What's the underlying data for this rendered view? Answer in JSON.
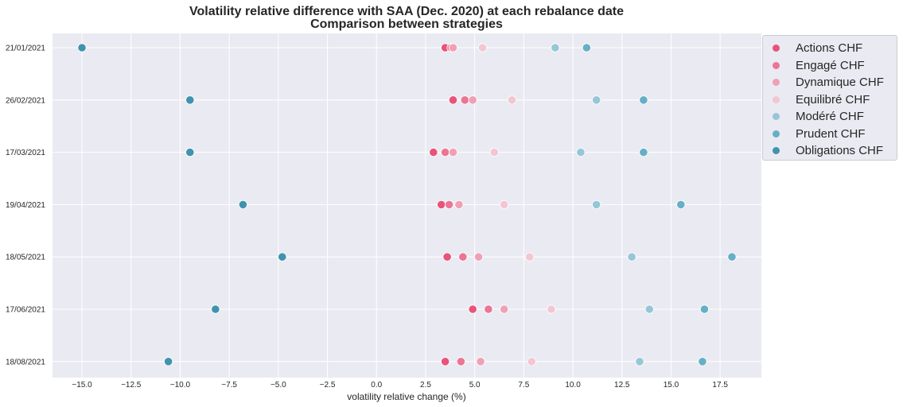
{
  "chart_data": {
    "type": "scatter",
    "title": "Volatility relative difference with SAA (Dec. 2020) at each rebalance date",
    "subtitle": "Comparison between strategies",
    "xlabel": "volatility relative change (%)",
    "ylabel": "",
    "xlim": [
      -16.5,
      19.6
    ],
    "x_ticks": [
      "−15.0",
      "−12.5",
      "−10.0",
      "−7.5",
      "−5.0",
      "−2.5",
      "0.0",
      "2.5",
      "5.0",
      "7.5",
      "10.0",
      "12.5",
      "15.0",
      "17.5"
    ],
    "x_tick_values": [
      -15,
      -12.5,
      -10,
      -7.5,
      -5,
      -2.5,
      0,
      2.5,
      5,
      7.5,
      10,
      12.5,
      15,
      17.5
    ],
    "categories": [
      "21/01/2021",
      "26/02/2021",
      "17/03/2021",
      "19/04/2021",
      "18/05/2021",
      "17/06/2021",
      "18/08/2021"
    ],
    "grid": true,
    "legend_position": "outside-top-right",
    "series": [
      {
        "name": "Actions CHF",
        "color": "#e8537a",
        "values": [
          3.5,
          3.9,
          2.9,
          3.3,
          3.6,
          4.9,
          3.5
        ]
      },
      {
        "name": "Engagé CHF",
        "color": "#ec7594",
        "values": [
          3.8,
          4.5,
          3.5,
          3.7,
          4.4,
          5.7,
          4.3
        ]
      },
      {
        "name": "Dynamique CHF",
        "color": "#f0a0b5",
        "values": [
          3.9,
          4.9,
          3.9,
          4.2,
          5.2,
          6.5,
          5.3
        ]
      },
      {
        "name": "Equilibré CHF",
        "color": "#f2c6d2",
        "values": [
          5.4,
          6.9,
          6.0,
          6.5,
          7.8,
          8.9,
          7.9
        ]
      },
      {
        "name": "Modéré CHF",
        "color": "#97c6d6",
        "values": [
          9.1,
          11.2,
          10.4,
          11.2,
          13.0,
          13.9,
          13.4
        ]
      },
      {
        "name": "Prudent CHF",
        "color": "#66afc6",
        "values": [
          10.7,
          13.6,
          13.6,
          15.5,
          18.1,
          16.7,
          16.6
        ]
      },
      {
        "name": "Obligations CHF",
        "color": "#3f93ae",
        "values": [
          -15.0,
          -9.5,
          -9.5,
          -6.8,
          -4.8,
          -8.2,
          -10.6
        ]
      }
    ]
  }
}
